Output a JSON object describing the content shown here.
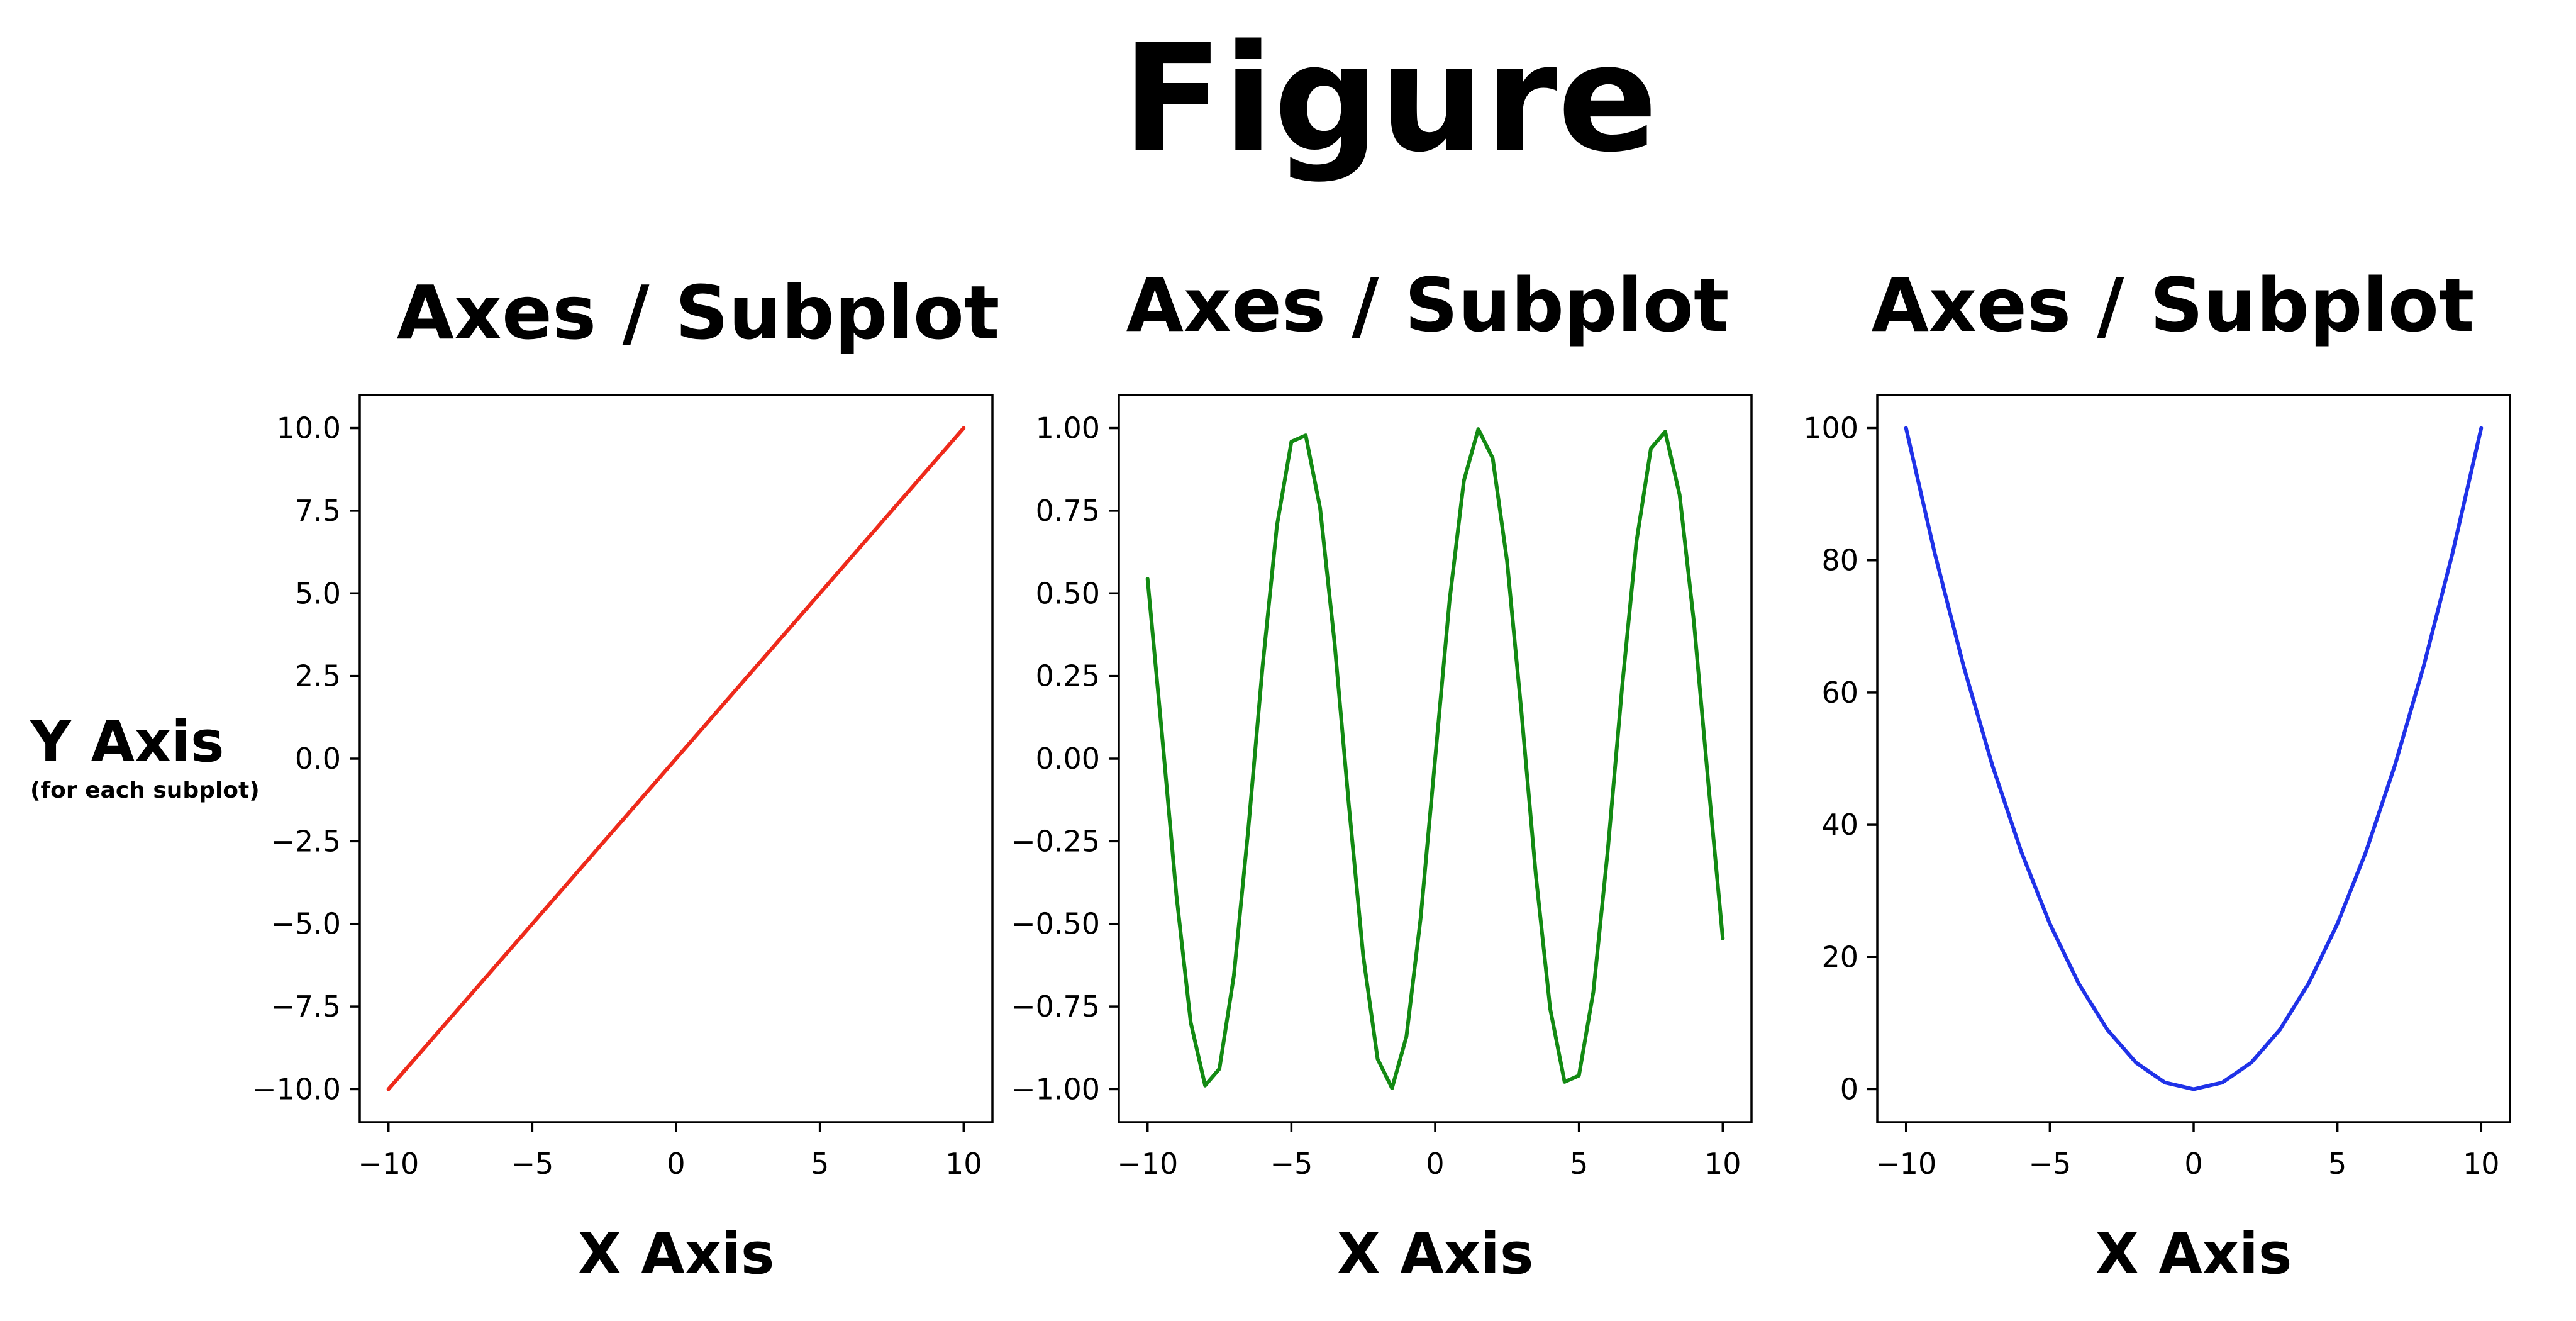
{
  "figure": {
    "title": "Figure",
    "ylabel": "Y Axis",
    "ylabel_note": "(for each subplot)"
  },
  "chart_data": [
    {
      "type": "line",
      "title": "Axes / Subplot",
      "xlabel": "X Axis",
      "ylabel": "",
      "xlim": [
        -11,
        11
      ],
      "ylim": [
        -11,
        11
      ],
      "xticks": [
        -10,
        -5,
        0,
        5,
        10
      ],
      "xtick_labels": [
        "−10",
        "−5",
        "0",
        "5",
        "10"
      ],
      "yticks": [
        -10,
        -7.5,
        -5,
        -2.5,
        0,
        2.5,
        5,
        7.5,
        10
      ],
      "ytick_labels": [
        "−10.0",
        "−7.5",
        "−5.0",
        "−2.5",
        "0.0",
        "2.5",
        "5.0",
        "7.5",
        "10.0"
      ],
      "grid": false,
      "series": [
        {
          "color": "#ee2a1b",
          "x": [
            -10,
            10
          ],
          "y": [
            -10,
            10
          ]
        }
      ]
    },
    {
      "type": "line",
      "title": "Axes / Subplot",
      "xlabel": "X Axis",
      "ylabel": "",
      "xlim": [
        -11,
        11
      ],
      "ylim": [
        -1.1,
        1.1
      ],
      "xticks": [
        -10,
        -5,
        0,
        5,
        10
      ],
      "xtick_labels": [
        "−10",
        "−5",
        "0",
        "5",
        "10"
      ],
      "yticks": [
        -1,
        -0.75,
        -0.5,
        -0.25,
        0,
        0.25,
        0.5,
        0.75,
        1
      ],
      "ytick_labels": [
        "−1.00",
        "−0.75",
        "−0.50",
        "−0.25",
        "0.00",
        "0.25",
        "0.50",
        "0.75",
        "1.00"
      ],
      "grid": false,
      "series": [
        {
          "color": "#138a13",
          "x": [
            -10,
            -9.5,
            -9,
            -8.5,
            -8,
            -7.5,
            -7,
            -6.5,
            -6,
            -5.5,
            -5,
            -4.5,
            -4,
            -3.5,
            -3,
            -2.5,
            -2,
            -1.5,
            -1,
            -0.5,
            0,
            0.5,
            1,
            1.5,
            2,
            2.5,
            3,
            3.5,
            4,
            4.5,
            5,
            5.5,
            6,
            6.5,
            7,
            7.5,
            8,
            8.5,
            9,
            9.5,
            10
          ],
          "y": [
            0.544,
            0.075,
            -0.412,
            -0.798,
            -0.989,
            -0.938,
            -0.657,
            -0.215,
            0.279,
            0.706,
            0.959,
            0.978,
            0.757,
            0.351,
            -0.141,
            -0.598,
            -0.909,
            -0.997,
            -0.841,
            -0.479,
            0,
            0.479,
            0.841,
            0.997,
            0.909,
            0.598,
            0.141,
            -0.351,
            -0.757,
            -0.978,
            -0.959,
            -0.706,
            -0.279,
            0.215,
            0.657,
            0.938,
            0.989,
            0.798,
            0.412,
            -0.075,
            -0.544
          ]
        }
      ]
    },
    {
      "type": "line",
      "title": "Axes / Subplot",
      "xlabel": "X Axis",
      "ylabel": "",
      "xlim": [
        -11,
        11
      ],
      "ylim": [
        -5,
        105
      ],
      "xticks": [
        -10,
        -5,
        0,
        5,
        10
      ],
      "xtick_labels": [
        "−10",
        "−5",
        "0",
        "5",
        "10"
      ],
      "yticks": [
        0,
        20,
        40,
        60,
        80,
        100
      ],
      "ytick_labels": [
        "0",
        "20",
        "40",
        "60",
        "80",
        "100"
      ],
      "grid": false,
      "series": [
        {
          "color": "#1f32e8",
          "x": [
            -10,
            -9,
            -8,
            -7,
            -6,
            -5,
            -4,
            -3,
            -2,
            -1,
            0,
            1,
            2,
            3,
            4,
            5,
            6,
            7,
            8,
            9,
            10
          ],
          "y": [
            100,
            81,
            64,
            49,
            36,
            25,
            16,
            9,
            4,
            1,
            0,
            1,
            4,
            9,
            16,
            25,
            36,
            49,
            64,
            81,
            100
          ]
        }
      ]
    }
  ]
}
